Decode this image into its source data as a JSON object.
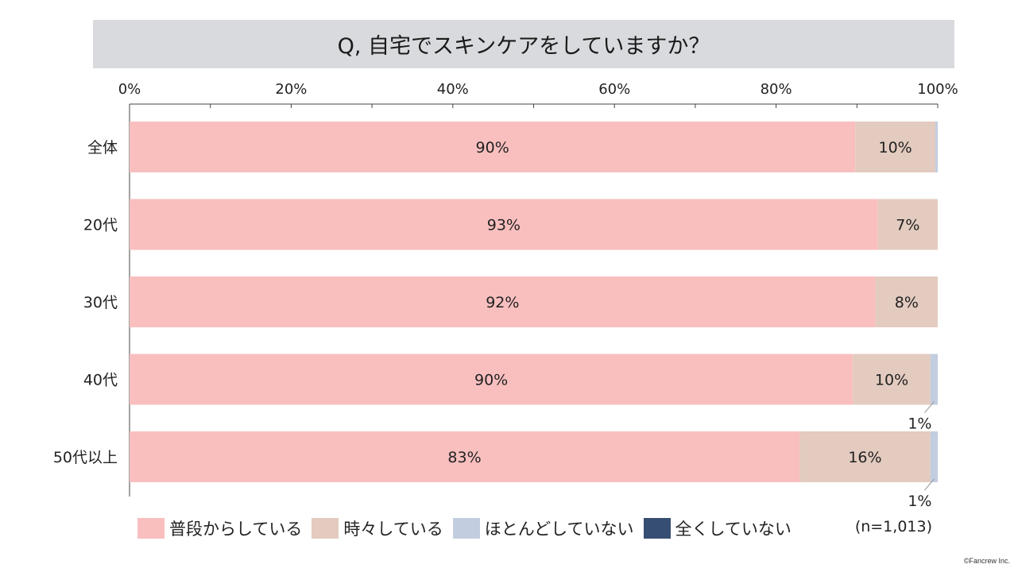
{
  "title": "Q, 自宅でスキンケアをしていますか？",
  "sample_size": "(n=1,013)",
  "copyright": "©Fancrew Inc.",
  "colors": {
    "series": [
      "#f9bfbf",
      "#e3cbbf",
      "#c2cde0",
      "#374e73"
    ],
    "axis": "#444444"
  },
  "chart_data": {
    "type": "bar",
    "orientation": "horizontal",
    "stacked": true,
    "xlim": [
      0,
      100
    ],
    "x_ticks": [
      "0%",
      "20%",
      "40%",
      "60%",
      "80%",
      "100%"
    ],
    "categories": [
      "全体",
      "20代",
      "30代",
      "40代",
      "50代以上"
    ],
    "series": [
      {
        "name": "普段からしている",
        "values": [
          89.8,
          92.6,
          92.3,
          89.5,
          82.9
        ]
      },
      {
        "name": "時々している",
        "values": [
          9.9,
          7.4,
          7.7,
          9.6,
          16.2
        ]
      },
      {
        "name": "ほとんどしていない",
        "values": [
          0.3,
          0,
          0,
          0.9,
          0.9
        ]
      },
      {
        "name": "全くしていない",
        "values": [
          0,
          0,
          0,
          0,
          0
        ]
      }
    ],
    "data_labels": [
      [
        "90%",
        "10%",
        "",
        ""
      ],
      [
        "93%",
        "7%",
        "",
        ""
      ],
      [
        "92%",
        "8%",
        "",
        ""
      ],
      [
        "90%",
        "10%",
        "1%",
        ""
      ],
      [
        "83%",
        "16%",
        "1%",
        ""
      ]
    ],
    "legend_position": "bottom",
    "grid": false
  }
}
